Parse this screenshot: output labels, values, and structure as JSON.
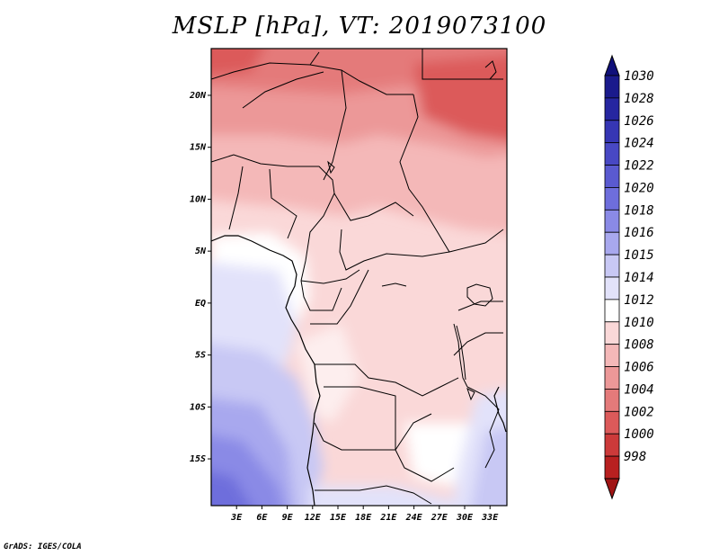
{
  "title": "MSLP [hPa], VT: 2019073100",
  "footer": "GrADS: IGES/COLA",
  "map": {
    "lon_range": [
      0,
      35
    ],
    "lat_range": [
      -19.5,
      24.5
    ],
    "lat_ticks": [
      {
        "value": 20,
        "label": "20N"
      },
      {
        "value": 15,
        "label": "15N"
      },
      {
        "value": 10,
        "label": "10N"
      },
      {
        "value": 5,
        "label": "5N"
      },
      {
        "value": 0,
        "label": "EQ"
      },
      {
        "value": -5,
        "label": "5S"
      },
      {
        "value": -10,
        "label": "10S"
      },
      {
        "value": -15,
        "label": "15S"
      }
    ],
    "lon_ticks": [
      {
        "value": 3,
        "label": "3E"
      },
      {
        "value": 6,
        "label": "6E"
      },
      {
        "value": 9,
        "label": "9E"
      },
      {
        "value": 12,
        "label": "12E"
      },
      {
        "value": 15,
        "label": "15E"
      },
      {
        "value": 18,
        "label": "18E"
      },
      {
        "value": 21,
        "label": "21E"
      },
      {
        "value": 24,
        "label": "24E"
      },
      {
        "value": 27,
        "label": "27E"
      },
      {
        "value": 30,
        "label": "30E"
      },
      {
        "value": 33,
        "label": "33E"
      }
    ]
  },
  "colorbar": {
    "levels": [
      {
        "label": "1030",
        "color": "#1a1a8c"
      },
      {
        "label": "1028",
        "color": "#2626a0"
      },
      {
        "label": "1026",
        "color": "#3636b4"
      },
      {
        "label": "1024",
        "color": "#4848c4"
      },
      {
        "label": "1022",
        "color": "#5a5ad0"
      },
      {
        "label": "1020",
        "color": "#6e6edc"
      },
      {
        "label": "1018",
        "color": "#8a8ae6"
      },
      {
        "label": "1016",
        "color": "#a8a8ee"
      },
      {
        "label": "1015",
        "color": "#c8c8f4"
      },
      {
        "label": "1014",
        "color": "#e2e2fa"
      },
      {
        "label": "1012",
        "color": "#ffffff"
      },
      {
        "label": "1010",
        "color": "#fad8d8"
      },
      {
        "label": "1008",
        "color": "#f4b8b8"
      },
      {
        "label": "1006",
        "color": "#ec9898"
      },
      {
        "label": "1004",
        "color": "#e47a7a"
      },
      {
        "label": "1002",
        "color": "#dc5a5a"
      },
      {
        "label": "1000",
        "color": "#cc3a3a"
      },
      {
        "label": "998",
        "color": "#b82020"
      }
    ],
    "top_arrow_color": "#10107a",
    "bottom_arrow_color": "#a01414"
  }
}
